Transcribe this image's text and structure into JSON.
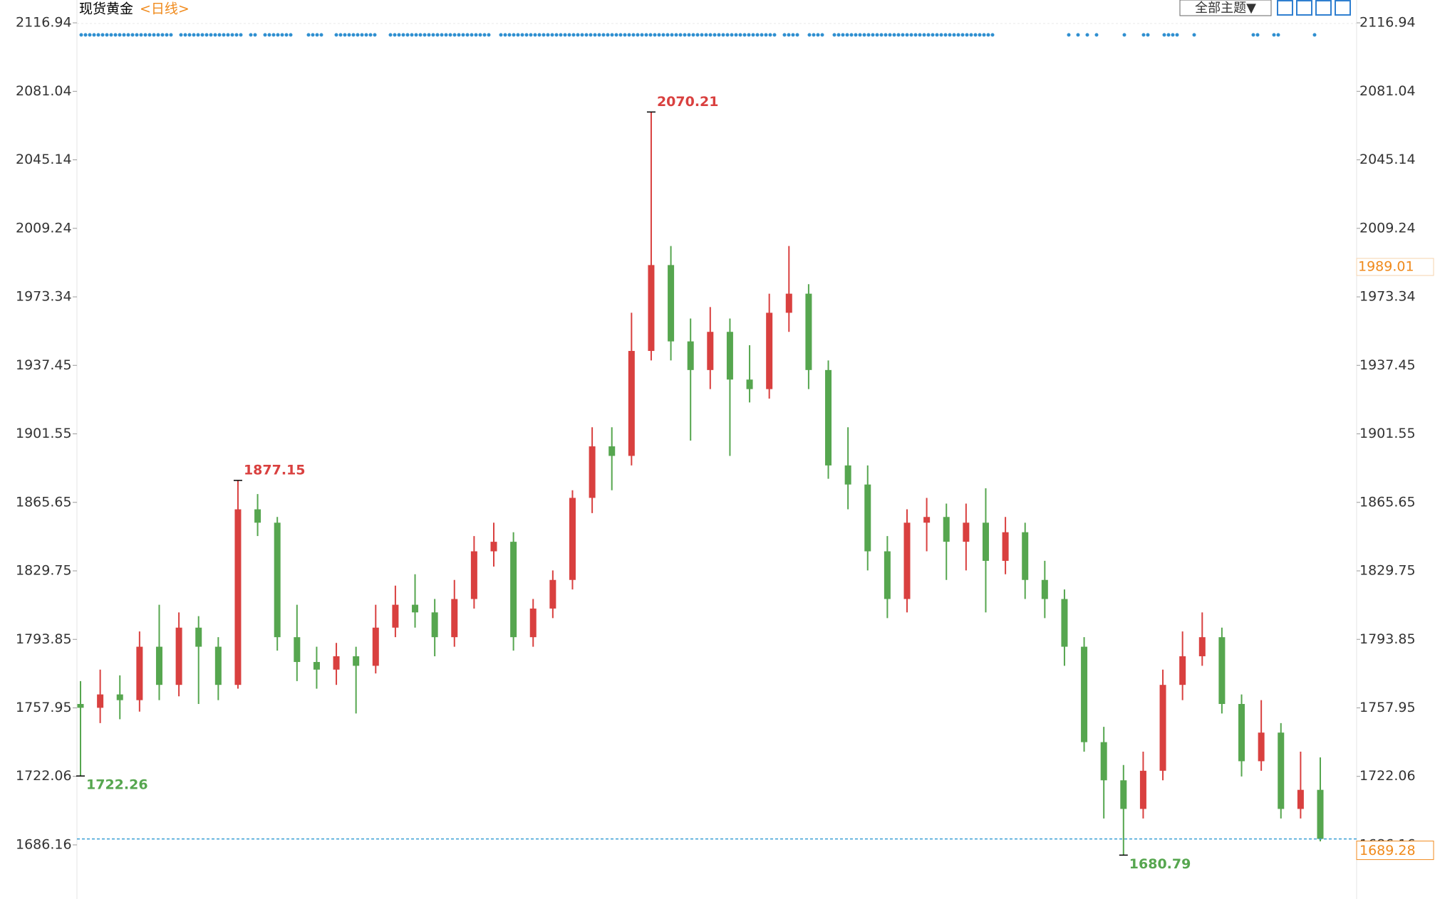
{
  "chart_data": {
    "type": "candlestick",
    "title": "现货黄金",
    "subtitle": "<日线>",
    "toolbar_button": "全部主题▼",
    "ylim": [
      1657.8,
      2128.9
    ],
    "yticks": [
      2116.94,
      2081.04,
      2045.14,
      2009.24,
      1973.34,
      1937.45,
      1901.55,
      1865.65,
      1829.75,
      1793.85,
      1757.95,
      1722.06,
      1686.16
    ],
    "up_color": "#d9403f",
    "down_color": "#56a64f",
    "last_color": "#f08a1c",
    "marker_price": 1989.01,
    "ohlc": [
      [
        1760,
        1772,
        1722.26,
        1758
      ],
      [
        1758,
        1778,
        1750,
        1765
      ],
      [
        1765,
        1775,
        1752,
        1762
      ],
      [
        1762,
        1798,
        1756,
        1790
      ],
      [
        1790,
        1812,
        1762,
        1770
      ],
      [
        1770,
        1808,
        1764,
        1800
      ],
      [
        1800,
        1806,
        1760,
        1790
      ],
      [
        1790,
        1795,
        1762,
        1770
      ],
      [
        1770,
        1877.15,
        1768,
        1862
      ],
      [
        1862,
        1870,
        1848,
        1855
      ],
      [
        1855,
        1858,
        1788,
        1795
      ],
      [
        1795,
        1812,
        1772,
        1782
      ],
      [
        1782,
        1790,
        1768,
        1778
      ],
      [
        1778,
        1792,
        1770,
        1785
      ],
      [
        1785,
        1790,
        1755,
        1780
      ],
      [
        1780,
        1812,
        1776,
        1800
      ],
      [
        1800,
        1822,
        1795,
        1812
      ],
      [
        1812,
        1828,
        1800,
        1808
      ],
      [
        1808,
        1815,
        1785,
        1795
      ],
      [
        1795,
        1825,
        1790,
        1815
      ],
      [
        1815,
        1848,
        1810,
        1840
      ],
      [
        1840,
        1855,
        1832,
        1845
      ],
      [
        1845,
        1850,
        1788,
        1795
      ],
      [
        1795,
        1815,
        1790,
        1810
      ],
      [
        1810,
        1830,
        1805,
        1825
      ],
      [
        1825,
        1872,
        1820,
        1868
      ],
      [
        1868,
        1905,
        1860,
        1895
      ],
      [
        1895,
        1905,
        1872,
        1890
      ],
      [
        1890,
        1965,
        1885,
        1945
      ],
      [
        1945,
        2070.21,
        1940,
        1990
      ],
      [
        1990,
        2000,
        1940,
        1950
      ],
      [
        1950,
        1962,
        1898,
        1935
      ],
      [
        1935,
        1968,
        1925,
        1955
      ],
      [
        1955,
        1962,
        1890,
        1930
      ],
      [
        1930,
        1948,
        1918,
        1925
      ],
      [
        1925,
        1975,
        1920,
        1965
      ],
      [
        1965,
        2000,
        1955,
        1975
      ],
      [
        1975,
        1980,
        1925,
        1935
      ],
      [
        1935,
        1940,
        1878,
        1885
      ],
      [
        1885,
        1905,
        1862,
        1875
      ],
      [
        1875,
        1885,
        1830,
        1840
      ],
      [
        1840,
        1848,
        1805,
        1815
      ],
      [
        1815,
        1862,
        1808,
        1855
      ],
      [
        1855,
        1868,
        1840,
        1858
      ],
      [
        1858,
        1865,
        1825,
        1845
      ],
      [
        1845,
        1865,
        1830,
        1855
      ],
      [
        1855,
        1873,
        1808,
        1835
      ],
      [
        1835,
        1858,
        1828,
        1850
      ],
      [
        1850,
        1855,
        1815,
        1825
      ],
      [
        1825,
        1835,
        1805,
        1815
      ],
      [
        1815,
        1820,
        1780,
        1790
      ],
      [
        1790,
        1795,
        1735,
        1740
      ],
      [
        1740,
        1748,
        1700,
        1720
      ],
      [
        1720,
        1728,
        1680.79,
        1705
      ],
      [
        1705,
        1735,
        1700,
        1725
      ],
      [
        1725,
        1778,
        1720,
        1770
      ],
      [
        1770,
        1798,
        1762,
        1785
      ],
      [
        1785,
        1808,
        1780,
        1795
      ],
      [
        1795,
        1800,
        1755,
        1760
      ],
      [
        1760,
        1765,
        1722,
        1730
      ],
      [
        1730,
        1762,
        1725,
        1745
      ],
      [
        1745,
        1750,
        1700,
        1705
      ],
      [
        1705,
        1735,
        1700,
        1715
      ],
      [
        1715,
        1732,
        1688,
        1689.28
      ]
    ]
  }
}
